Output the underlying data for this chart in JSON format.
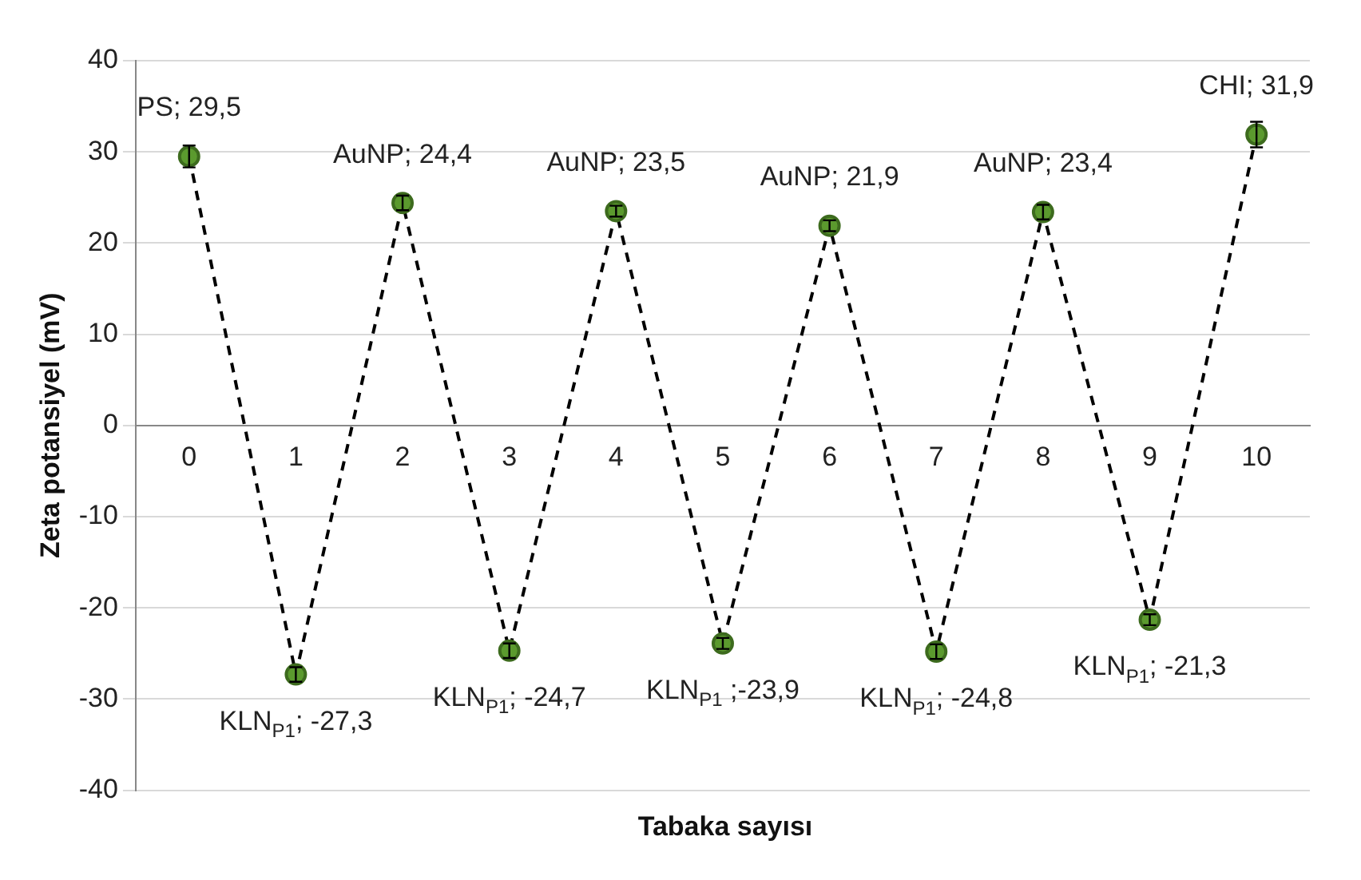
{
  "chart_data": {
    "type": "line",
    "xlabel": "Tabaka sayısı",
    "ylabel": "Zeta potansiyel (mV)",
    "categories": [
      "0",
      "1",
      "2",
      "3",
      "4",
      "5",
      "6",
      "7",
      "8",
      "9",
      "10"
    ],
    "series": [
      {
        "color": "#5b9a2e",
        "values": [
          29.5,
          -27.3,
          24.4,
          -24.7,
          23.5,
          -23.9,
          21.9,
          -24.8,
          23.4,
          -21.3,
          31.9
        ],
        "errors": [
          1.2,
          0.8,
          0.8,
          0.8,
          0.6,
          0.6,
          0.6,
          0.8,
          0.8,
          0.6,
          1.4
        ]
      }
    ],
    "ylim": [
      -40,
      40
    ],
    "yticks": [
      -40,
      -30,
      -20,
      -10,
      0,
      10,
      20,
      30,
      40
    ],
    "grid": "y",
    "legend": false,
    "marker": "circle",
    "line_style": "dashed",
    "annotations": [
      {
        "text": "PS; 29,5",
        "x": "0",
        "y": 29.5
      },
      {
        "text": "KLN$_{P1}$; -27,3",
        "x": "1",
        "y": -27.3
      },
      {
        "text": "AuNP; 24,4",
        "x": "2",
        "y": 24.4
      },
      {
        "text": "KLN$_{P1}$; -24,7",
        "x": "3",
        "y": -24.7
      },
      {
        "text": "AuNP; 23,5",
        "x": "4",
        "y": 23.5
      },
      {
        "text": "KLN$_{P1}$ ;-23,9",
        "x": "5",
        "y": -23.9
      },
      {
        "text": "AuNP; 21,9",
        "x": "6",
        "y": 21.9
      },
      {
        "text": "KLN$_{P1}$; -24,8",
        "x": "7",
        "y": -24.8
      },
      {
        "text": "AuNP; 23,4",
        "x": "8",
        "y": 23.4
      },
      {
        "text": "KLN$_{P1}$; -21,3",
        "x": "9",
        "y": -21.3
      },
      {
        "text": "CHI; 31,9",
        "x": "10",
        "y": 31.9
      }
    ]
  }
}
